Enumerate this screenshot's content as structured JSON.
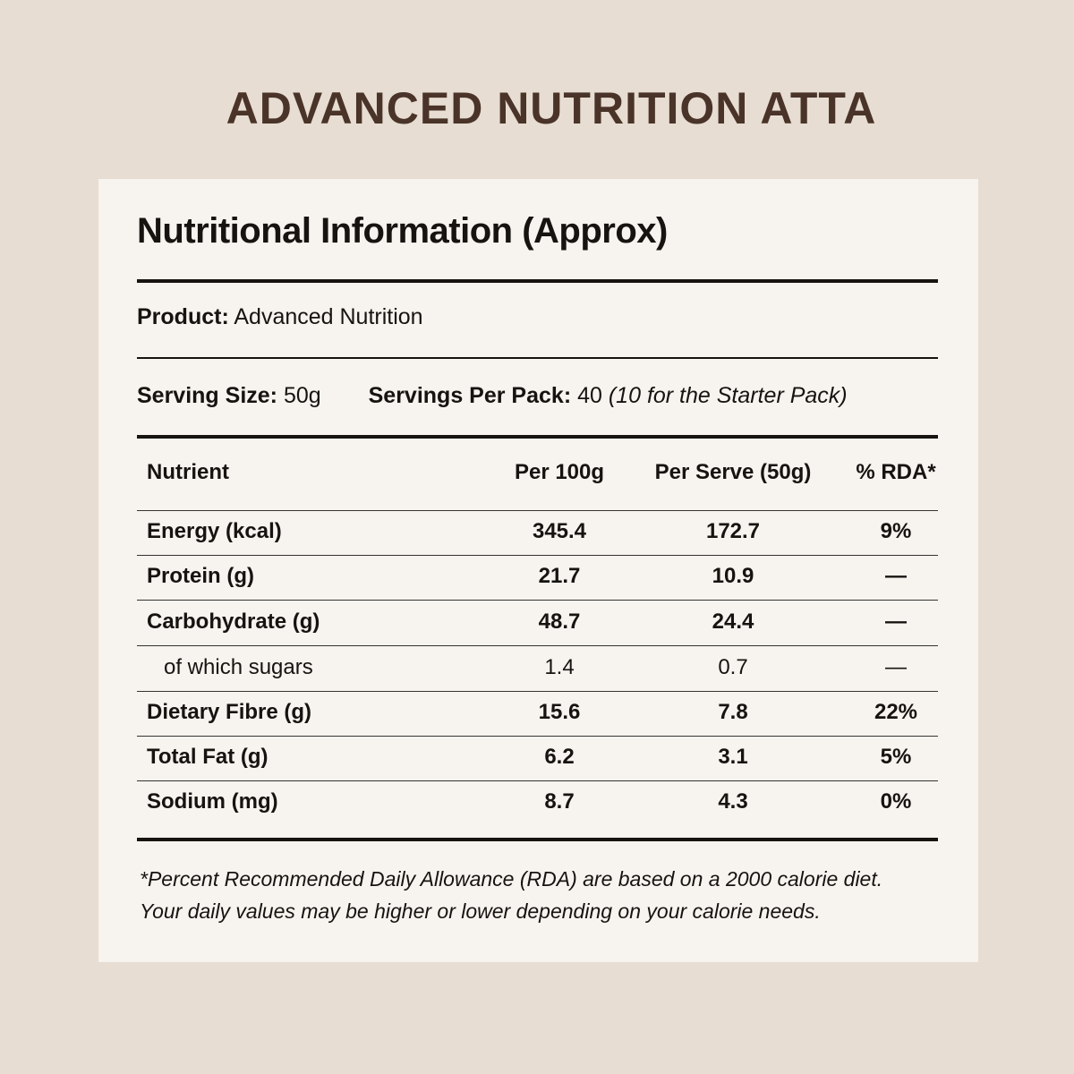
{
  "title": "ADVANCED NUTRITION ATTA",
  "heading": "Nutritional Information (Approx)",
  "product": {
    "label": "Product:",
    "value": "Advanced Nutrition"
  },
  "serving": {
    "size_label": "Serving Size:",
    "size_value": "50g",
    "per_pack_label": "Servings Per Pack:",
    "per_pack_value": "40",
    "per_pack_note": "(10 for the Starter Pack)"
  },
  "table": {
    "headers": [
      "Nutrient",
      "Per 100g",
      "Per Serve (50g)",
      "% RDA*"
    ],
    "rows": [
      {
        "nutrient": "Energy (kcal)",
        "per_100g": "345.4",
        "per_serve": "172.7",
        "rda": "9%"
      },
      {
        "nutrient": "Protein (g)",
        "per_100g": "21.7",
        "per_serve": "10.9",
        "rda": "—"
      },
      {
        "nutrient": "Carbohydrate (g)",
        "per_100g": "48.7",
        "per_serve": "24.4",
        "rda": "—"
      },
      {
        "nutrient": "of which sugars",
        "per_100g": "1.4",
        "per_serve": "0.7",
        "rda": "—"
      },
      {
        "nutrient": "Dietary Fibre (g)",
        "per_100g": "15.6",
        "per_serve": "7.8",
        "rda": "22%"
      },
      {
        "nutrient": "Total Fat (g)",
        "per_100g": "6.2",
        "per_serve": "3.1",
        "rda": "5%"
      },
      {
        "nutrient": "Sodium (mg)",
        "per_100g": "8.7",
        "per_serve": "4.3",
        "rda": "0%"
      }
    ]
  },
  "footnote": [
    "*Percent Recommended Daily Allowance (RDA) are based on a 2000 calorie diet.",
    "Your daily values may be higher or lower depending on your calorie needs."
  ]
}
